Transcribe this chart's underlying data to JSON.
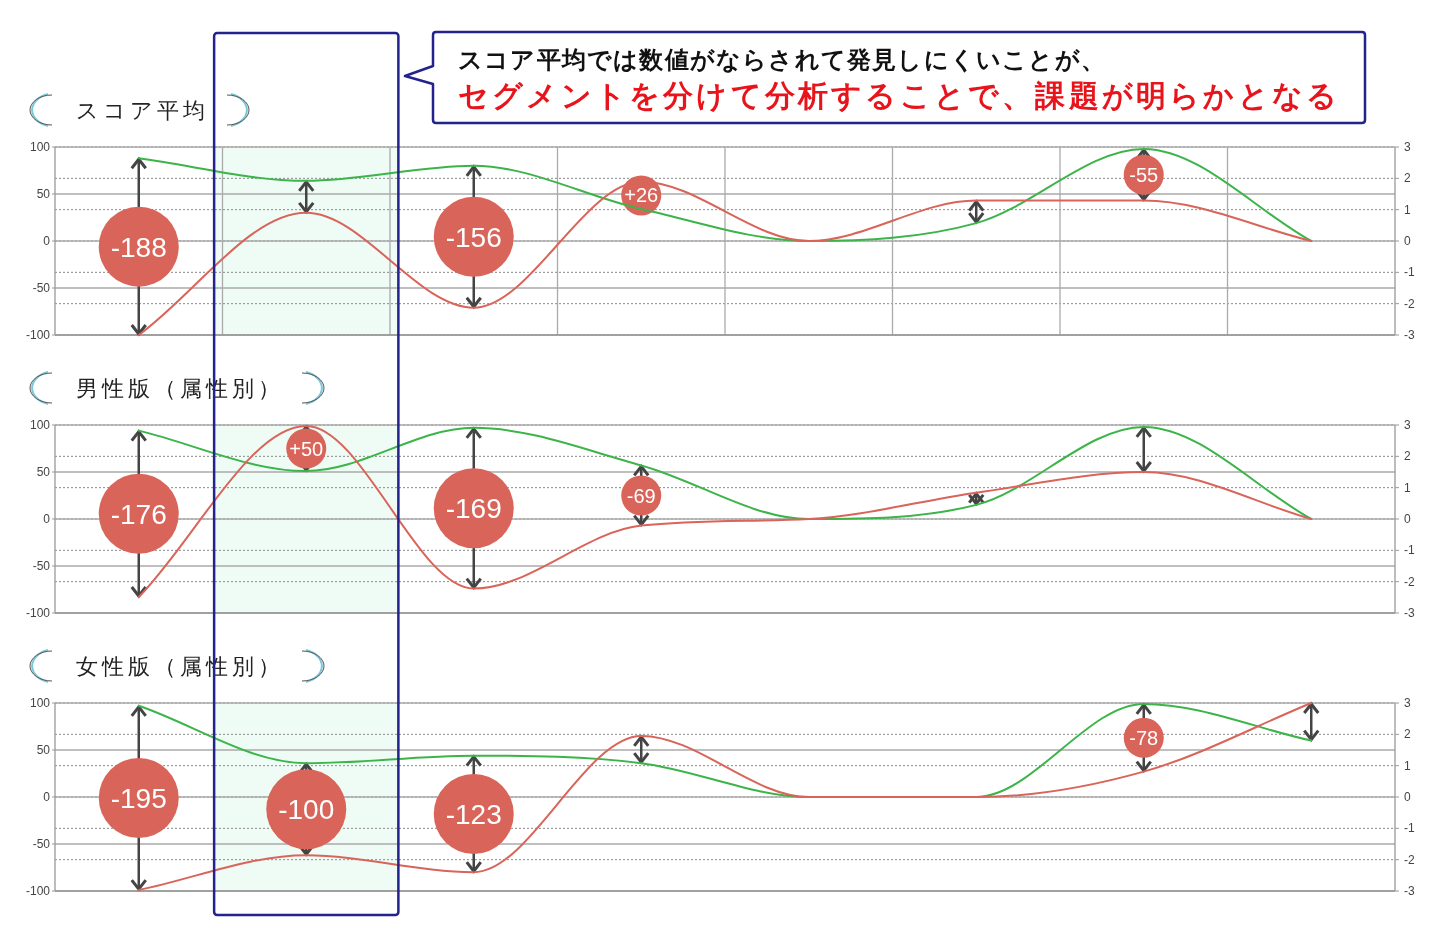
{
  "chart_data": [
    {
      "type": "line",
      "title": "スコア平均",
      "categories": [
        null,
        null,
        null,
        null,
        null,
        null,
        null,
        null
      ],
      "ylim": [
        -100,
        100
      ],
      "yticks": [
        -100,
        -50,
        0,
        50,
        100
      ],
      "y2lim": [
        -3,
        3
      ],
      "y2ticks": [
        -3,
        -2,
        -1,
        0,
        1,
        2,
        3
      ],
      "grid": true,
      "series": [
        {
          "color": "#3cb44a",
          "values": [
            88,
            64,
            80,
            34,
            0,
            19,
            98,
            0
          ]
        },
        {
          "color": "#d9645a",
          "values": [
            -100,
            30,
            -71,
            63,
            0,
            43,
            43,
            0
          ]
        }
      ],
      "annotations": [
        "スコア平均では数値がならされて発見しにくいことが、",
        "セグメントを分けて分析することで、課題が明らかとなる",
        "-188",
        "-156",
        "+26",
        "-55"
      ]
    },
    {
      "type": "line",
      "title": "男性版（属性別）",
      "categories": [
        null,
        null,
        null,
        null,
        null,
        null,
        null,
        null
      ],
      "ylim": [
        -100,
        100
      ],
      "yticks": [
        -100,
        -50,
        0,
        50,
        100
      ],
      "y2lim": [
        -3,
        3
      ],
      "y2ticks": [
        -3,
        -2,
        -1,
        0,
        1,
        2,
        3
      ],
      "grid": "y",
      "series": [
        {
          "color": "#3cb44a",
          "values": [
            94,
            51,
            97,
            57,
            0,
            15,
            98,
            0
          ]
        },
        {
          "color": "#d9645a",
          "values": [
            -83,
            99,
            -74,
            -7,
            0,
            28,
            50,
            0
          ]
        }
      ],
      "annotations": [
        "-176",
        "+50",
        "-169",
        "-69"
      ]
    },
    {
      "type": "line",
      "title": "女性版（属性別）",
      "categories": [
        null,
        null,
        null,
        null,
        null,
        null,
        null,
        null
      ],
      "ylim": [
        -100,
        100
      ],
      "yticks": [
        -100,
        -50,
        0,
        50,
        100
      ],
      "y2lim": [
        -3,
        3
      ],
      "y2ticks": [
        -3,
        -2,
        -1,
        0,
        1,
        2,
        3
      ],
      "grid": "y",
      "series": [
        {
          "color": "#3cb44a",
          "values": [
            97,
            36,
            44,
            36,
            0,
            0,
            99,
            60
          ]
        },
        {
          "color": "#d9645a",
          "values": [
            -99,
            -62,
            -80,
            65,
            0,
            0,
            27,
            100
          ]
        }
      ],
      "annotations": [
        "-195",
        "-100",
        "-123",
        "-78"
      ]
    }
  ]
}
